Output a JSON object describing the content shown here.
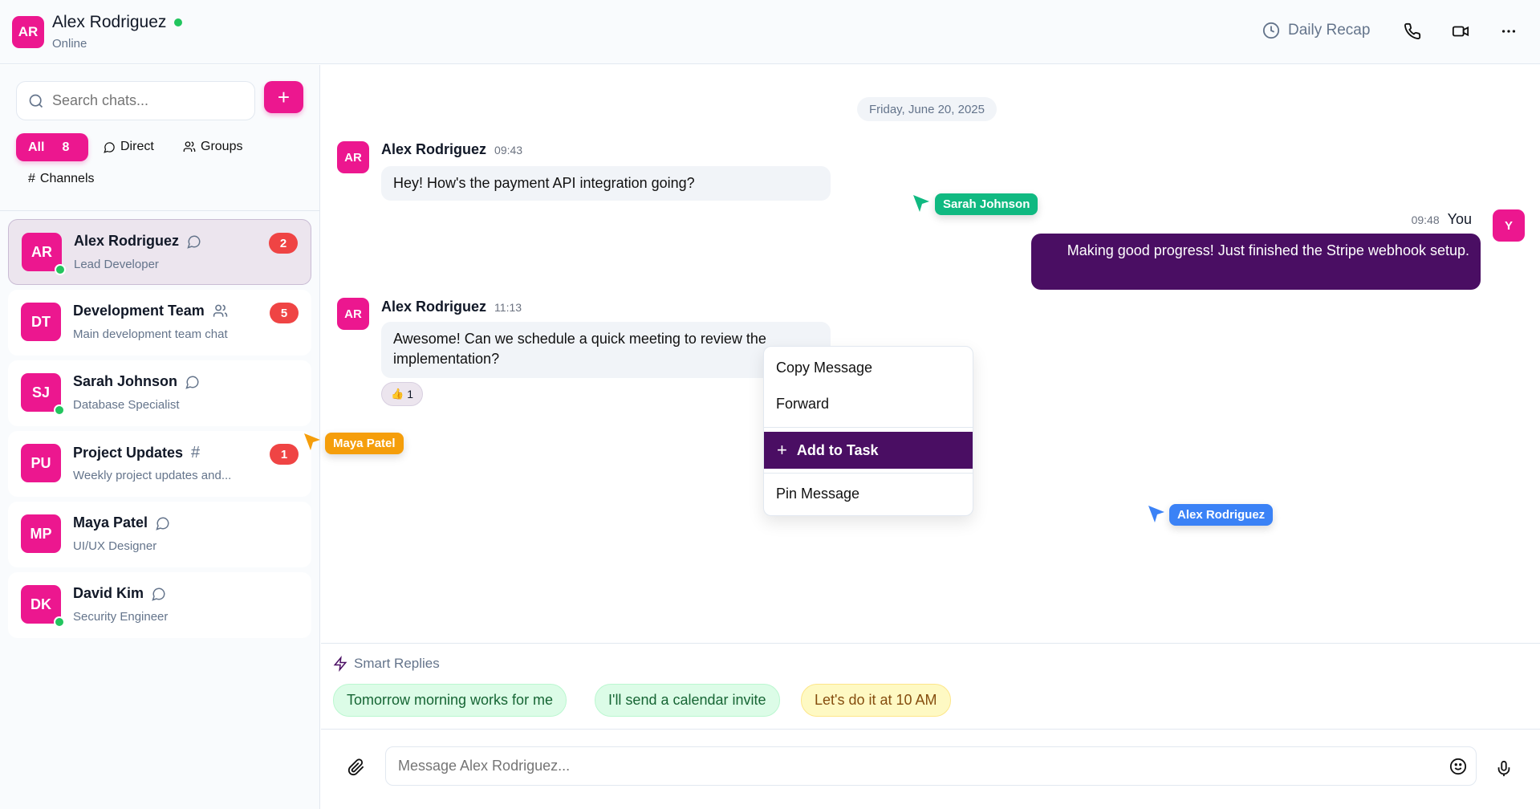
{
  "colors": {
    "accent": "#ec178f",
    "purple": "#4a0e63",
    "online": "#22c55e",
    "badge": "#ef4444"
  },
  "header": {
    "avatar": "AR",
    "name": "Alex Rodriguez",
    "status": "Online",
    "daily_recap": "Daily Recap"
  },
  "sidebar": {
    "search_placeholder": "Search chats...",
    "new_chat": "+",
    "filters": {
      "all": "All",
      "all_count": "8",
      "direct": "Direct",
      "groups": "Groups",
      "channels": "Channels"
    },
    "chats": [
      {
        "initials": "AR",
        "name": "Alex Rodriguez",
        "subtitle": "Lead Developer",
        "type": "direct",
        "badge": "2",
        "online": true,
        "selected": true
      },
      {
        "initials": "DT",
        "name": "Development Team",
        "subtitle": "Main development team chat",
        "type": "group",
        "badge": "5",
        "online": false
      },
      {
        "initials": "SJ",
        "name": "Sarah Johnson",
        "subtitle": "Database Specialist",
        "type": "direct",
        "badge": null,
        "online": true
      },
      {
        "initials": "PU",
        "name": "Project Updates",
        "subtitle": "Weekly project updates and...",
        "type": "channel",
        "badge": "1",
        "online": false
      },
      {
        "initials": "MP",
        "name": "Maya Patel",
        "subtitle": "UI/UX Designer",
        "type": "direct",
        "badge": null,
        "online": false
      },
      {
        "initials": "DK",
        "name": "David Kim",
        "subtitle": "Security Engineer",
        "type": "direct",
        "badge": null,
        "online": true
      }
    ]
  },
  "chat": {
    "date": "Friday, June 20, 2025",
    "messages": [
      {
        "avatar": "AR",
        "sender": "Alex Rodriguez",
        "time": "09:43",
        "text": "Hey! How's the payment API integration going?"
      },
      {
        "avatar": "Y",
        "sender": "You",
        "time": "09:48",
        "text": "Making good progress! Just finished the Stripe webhook setup."
      },
      {
        "avatar": "AR",
        "sender": "Alex Rodriguez",
        "time": "11:13",
        "text": "Awesome! Can we schedule a quick meeting to review the implementation?",
        "reaction": {
          "emoji": "👍",
          "count": "1"
        }
      }
    ],
    "context_menu": {
      "copy": "Copy Message",
      "forward": "Forward",
      "add_task": "Add to Task",
      "pin": "Pin Message"
    },
    "cursors": [
      {
        "name": "Sarah Johnson",
        "color": "#10b981"
      },
      {
        "name": "Maya Patel",
        "color": "#f59e0b"
      },
      {
        "name": "Alex Rodriguez",
        "color": "#3b82f6"
      }
    ],
    "smart_replies": {
      "label": "Smart Replies",
      "items": [
        "Tomorrow morning works for me",
        "I'll send a calendar invite",
        "Let's do it at 10 AM"
      ]
    },
    "input_placeholder": "Message Alex Rodriguez..."
  }
}
